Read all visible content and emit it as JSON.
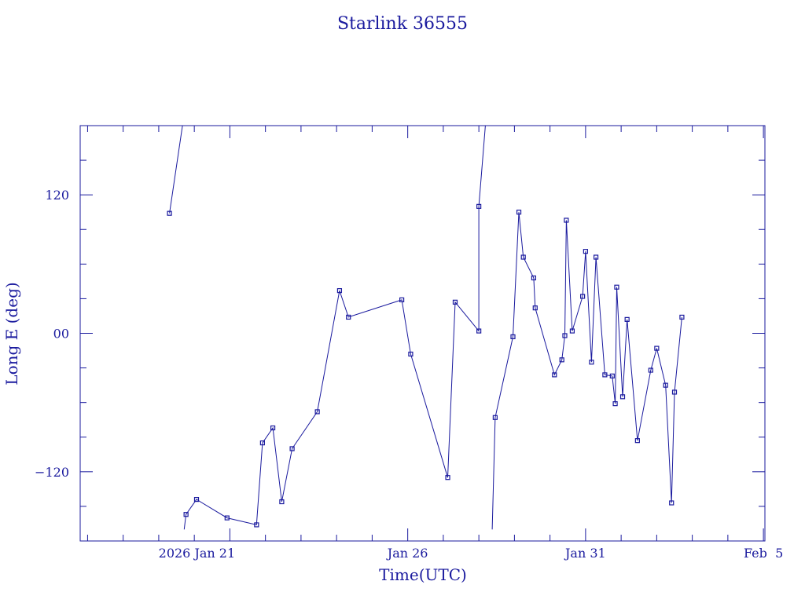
{
  "chart_data": {
    "type": "line",
    "title": "Starlink 36555",
    "xlabel": "Time(UTC)",
    "ylabel": "Long E (deg)",
    "x_unit": "UTC date",
    "xlim": [
      "2026-01-16T19:00",
      "2026-02-05T01:00"
    ],
    "ylim": [
      -180,
      180
    ],
    "yticks": [
      -120,
      0,
      120
    ],
    "ytick_labels": [
      "−120",
      "00",
      "120"
    ],
    "xticks": [
      {
        "date": "2026-01-21",
        "label": "2026 Jan 21"
      },
      {
        "date": "2026-01-26",
        "label": "Jan 26"
      },
      {
        "date": "2026-01-31",
        "label": "Jan 31"
      },
      {
        "date": "2026-02-05",
        "label": "Feb  5"
      }
    ],
    "grid": false,
    "colors": {
      "axes": "#1a1a9e",
      "series": "#1a1a9e"
    },
    "series": [
      {
        "points": [
          {
            "t": "2026-01-19T07:14",
            "lon": 104
          },
          {
            "t": "2026-01-19T17:10",
            "lon": 190,
            "offscale": true
          },
          {
            "t": "2026-01-19T17:10",
            "lon": -170,
            "offscale": true
          },
          {
            "t": "2026-01-19T18:25",
            "lon": -157
          },
          {
            "t": "2026-01-20T01:30",
            "lon": -144
          },
          {
            "t": "2026-01-20T22:05",
            "lon": -160
          },
          {
            "t": "2026-01-21T18:00",
            "lon": -166
          },
          {
            "t": "2026-01-21T22:00",
            "lon": -95
          },
          {
            "t": "2026-01-22T05:00",
            "lon": -82
          },
          {
            "t": "2026-01-22T11:00",
            "lon": -146
          },
          {
            "t": "2026-01-22T18:00",
            "lon": -100
          },
          {
            "t": "2026-01-23T11:00",
            "lon": -68
          },
          {
            "t": "2026-01-24T02:00",
            "lon": 37
          },
          {
            "t": "2026-01-24T08:00",
            "lon": 14
          },
          {
            "t": "2026-01-25T20:00",
            "lon": 29
          },
          {
            "t": "2026-01-26T02:00",
            "lon": -18
          },
          {
            "t": "2026-01-27T03:00",
            "lon": -125
          },
          {
            "t": "2026-01-27T08:00",
            "lon": 27
          },
          {
            "t": "2026-01-28T00:00",
            "lon": 2
          },
          {
            "t": "2026-01-28T00:00",
            "lon": 110
          },
          {
            "t": "2026-01-28T05:00",
            "lon": 190,
            "offscale": true
          },
          {
            "t": "2026-01-28T09:00",
            "lon": -170,
            "offscale": true
          },
          {
            "t": "2026-01-28T11:00",
            "lon": -73
          },
          {
            "t": "2026-01-28T23:00",
            "lon": -3
          },
          {
            "t": "2026-01-29T03:00",
            "lon": 105
          },
          {
            "t": "2026-01-29T06:00",
            "lon": 66
          },
          {
            "t": "2026-01-29T13:00",
            "lon": 48
          },
          {
            "t": "2026-01-29T14:00",
            "lon": 22
          },
          {
            "t": "2026-01-30T03:00",
            "lon": -36
          },
          {
            "t": "2026-01-30T08:00",
            "lon": -23
          },
          {
            "t": "2026-01-30T10:00",
            "lon": -2
          },
          {
            "t": "2026-01-30T11:00",
            "lon": 98
          },
          {
            "t": "2026-01-30T15:00",
            "lon": 2
          },
          {
            "t": "2026-01-30T22:00",
            "lon": 32
          },
          {
            "t": "2026-01-31T00:00",
            "lon": 71
          },
          {
            "t": "2026-01-31T04:00",
            "lon": -25
          },
          {
            "t": "2026-01-31T07:00",
            "lon": 66
          },
          {
            "t": "2026-01-31T13:00",
            "lon": -36
          },
          {
            "t": "2026-01-31T18:00",
            "lon": -37
          },
          {
            "t": "2026-01-31T20:00",
            "lon": -61
          },
          {
            "t": "2026-01-31T21:00",
            "lon": 40
          },
          {
            "t": "2026-02-01T01:00",
            "lon": -55
          },
          {
            "t": "2026-02-01T04:00",
            "lon": 12
          },
          {
            "t": "2026-02-01T11:00",
            "lon": -93
          },
          {
            "t": "2026-02-01T20:00",
            "lon": -32
          },
          {
            "t": "2026-02-02T00:00",
            "lon": -13
          },
          {
            "t": "2026-02-02T06:00",
            "lon": -45
          },
          {
            "t": "2026-02-02T10:00",
            "lon": -147
          },
          {
            "t": "2026-02-02T12:00",
            "lon": -51
          },
          {
            "t": "2026-02-02T17:00",
            "lon": 14
          }
        ]
      }
    ]
  }
}
